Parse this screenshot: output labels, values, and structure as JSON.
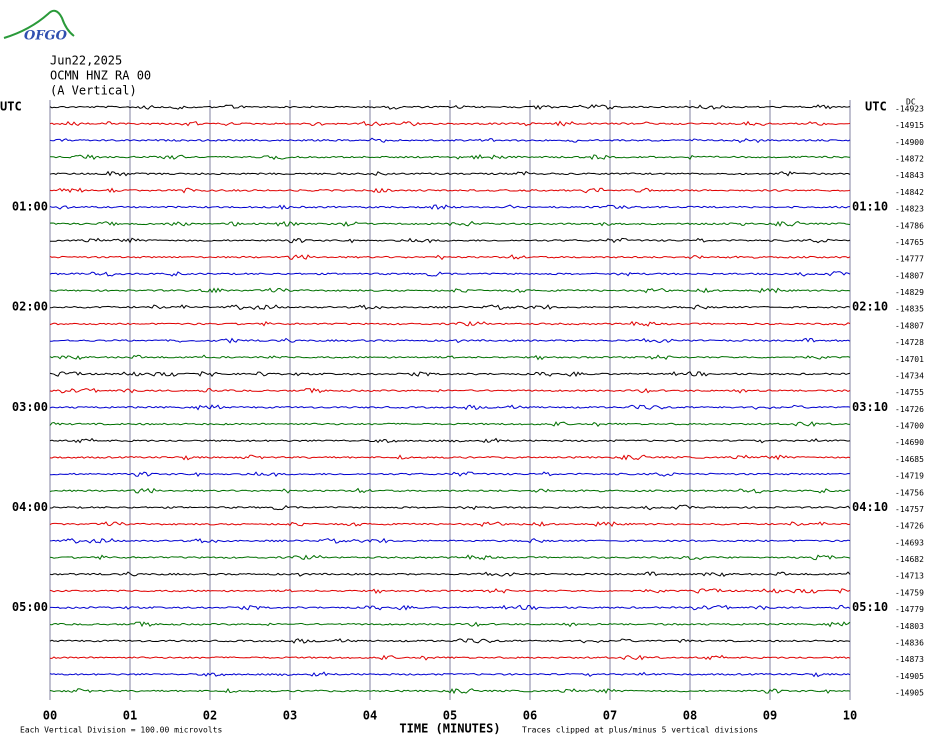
{
  "header": {
    "logo": "OFGO",
    "date": "Jun22,2025",
    "station": "OCMN HNZ RA 00",
    "component": "(A Vertical)"
  },
  "left_axis": {
    "title": "UTC",
    "labels": [
      "01:00",
      "02:00",
      "03:00",
      "04:00",
      "05:00"
    ]
  },
  "right_axis": {
    "title": "UTC",
    "labels": [
      "01:10",
      "02:10",
      "03:10",
      "04:10",
      "05:10"
    ],
    "unit": "DC",
    "offsets": [
      "-14923",
      "-14915",
      "-14900",
      "-14872",
      "-14843",
      "-14842",
      "-14823",
      "-14786",
      "-14765",
      "-14777",
      "-14807",
      "-14829",
      "-14835",
      "-14807",
      "-14728",
      "-14701",
      "-14734",
      "-14755",
      "-14726",
      "-14700",
      "-14690",
      "-14685",
      "-14719",
      "-14756",
      "-14757",
      "-14726",
      "-14693",
      "-14682",
      "-14713",
      "-14759",
      "-14779",
      "-14803",
      "-14836",
      "-14873",
      "-14905",
      "-14905"
    ]
  },
  "trace_colors": [
    "#000000",
    "#e00000",
    "#0000d0",
    "#007000"
  ],
  "x_axis": {
    "title": "TIME (MINUTES)",
    "ticks": [
      "00",
      "01",
      "02",
      "03",
      "04",
      "05",
      "06",
      "07",
      "08",
      "09",
      "10"
    ]
  },
  "footer": {
    "scale": "Each Vertical Division =  100.00 microvolts",
    "clip": "Traces clipped at plus/minus 5 vertical divisions"
  }
}
